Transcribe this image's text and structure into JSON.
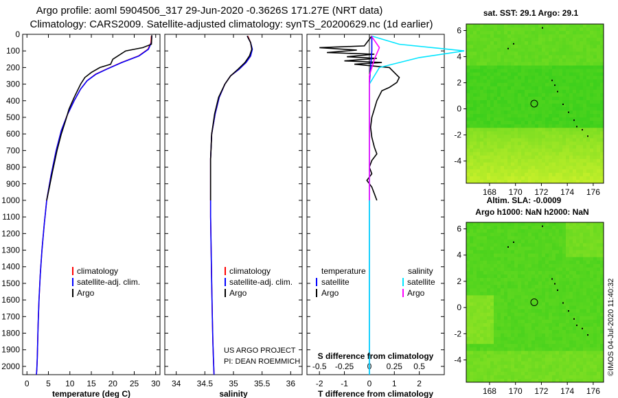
{
  "title_line1": "Argo profile: aoml 5904506_317 29-Jun-2020 -0.3626S 171.27E (NRT data)",
  "title_line2": "Climatology: CARS2009. Satellite-adjusted climatology: synTS_20200629.nc (1d earlier)",
  "depth_ticks": [
    0,
    100,
    200,
    300,
    400,
    500,
    600,
    700,
    800,
    900,
    1000,
    1100,
    1200,
    1300,
    1400,
    1500,
    1600,
    1700,
    1800,
    1900,
    2000
  ],
  "colors": {
    "climatology": "#ff0000",
    "satellite": "#0000ff",
    "argo": "#000000",
    "sal_sat": "#00e5ff",
    "sal_argo": "#ff00ff",
    "map_green": "#2ecc1a",
    "map_yellow": "#c8f02a"
  },
  "chart_data": [
    {
      "type": "line",
      "name_panel": "temperature",
      "xlabel": "temperature (deg C)",
      "ylabel": "",
      "xlim": [
        -1,
        31
      ],
      "ylim": [
        2050,
        0
      ],
      "x_ticks": [
        0,
        5,
        10,
        15,
        20,
        25,
        30
      ],
      "legend": [
        "climatology",
        "satellite-adj. clim.",
        "Argo"
      ],
      "series": [
        {
          "name": "climatology",
          "x": [
            29.0,
            28.9,
            28.2,
            26.0,
            22.0,
            18.5,
            16.0,
            14.0,
            12.5,
            11.0,
            9.5,
            8.0,
            6.8,
            5.6,
            4.6,
            4.0,
            3.5,
            3.1,
            2.8,
            2.6,
            2.5,
            2.4,
            2.3,
            2.2
          ],
          "y": [
            10,
            50,
            90,
            130,
            170,
            210,
            240,
            280,
            330,
            400,
            480,
            580,
            700,
            850,
            1000,
            1150,
            1300,
            1450,
            1600,
            1750,
            1850,
            1950,
            2020,
            2050
          ]
        },
        {
          "name": "satellite-adj. clim.",
          "x": [
            29.1,
            29.0,
            28.3,
            26.1,
            22.1,
            18.6,
            16.1,
            14.0,
            12.5,
            11.0,
            9.5,
            8.0,
            6.8,
            5.6,
            4.6,
            4.0,
            3.5,
            3.1,
            2.8,
            2.6,
            2.5,
            2.4,
            2.3,
            2.2
          ],
          "y": [
            10,
            50,
            90,
            130,
            170,
            210,
            240,
            280,
            330,
            400,
            480,
            580,
            700,
            850,
            1000,
            1150,
            1300,
            1450,
            1600,
            1750,
            1850,
            1950,
            2020,
            2050
          ]
        },
        {
          "name": "Argo",
          "x": [
            29.1,
            29.0,
            27.0,
            23.0,
            20.0,
            19.5,
            17.0,
            15.0,
            13.5,
            12.5,
            11.0,
            9.8,
            9.0,
            8.0,
            7.0,
            6.0,
            5.0,
            4.6
          ],
          "y": [
            5,
            60,
            80,
            100,
            150,
            180,
            200,
            230,
            260,
            300,
            380,
            450,
            520,
            600,
            700,
            820,
            950,
            1000
          ]
        }
      ]
    },
    {
      "type": "line",
      "name_panel": "salinity",
      "xlabel": "salinity",
      "ylabel": "",
      "xlim": [
        33.8,
        36.2
      ],
      "ylim": [
        2050,
        0
      ],
      "x_ticks": [
        34,
        34.5,
        35,
        35.5,
        36
      ],
      "legend": [
        "climatology",
        "satellite-adj. clim.",
        "Argo"
      ],
      "series": [
        {
          "name": "climatology",
          "x": [
            35.25,
            35.3,
            35.32,
            35.3,
            35.22,
            35.1,
            34.95,
            34.85,
            34.75,
            34.68,
            34.62,
            34.6,
            34.6,
            34.6,
            34.61,
            34.62,
            34.63,
            34.64,
            34.65,
            34.66
          ],
          "y": [
            10,
            50,
            90,
            130,
            170,
            210,
            250,
            300,
            380,
            480,
            600,
            750,
            900,
            1100,
            1300,
            1500,
            1700,
            1850,
            1950,
            2050
          ]
        },
        {
          "name": "satellite-adj. clim.",
          "x": [
            35.24,
            35.3,
            35.33,
            35.3,
            35.22,
            35.1,
            34.95,
            34.85,
            34.75,
            34.68,
            34.62,
            34.6,
            34.6,
            34.6,
            34.61,
            34.62,
            34.63,
            34.64,
            34.65,
            34.66
          ],
          "y": [
            10,
            50,
            90,
            130,
            170,
            210,
            250,
            300,
            380,
            480,
            600,
            750,
            900,
            1100,
            1300,
            1500,
            1700,
            1850,
            1950,
            2050
          ]
        },
        {
          "name": "Argo",
          "x": [
            35.24,
            35.3,
            35.32,
            35.28,
            35.2,
            35.08,
            34.95,
            34.85,
            34.74,
            34.67,
            34.62,
            34.6,
            34.6
          ],
          "y": [
            10,
            50,
            90,
            130,
            170,
            210,
            250,
            300,
            380,
            480,
            600,
            750,
            1000
          ]
        }
      ]
    },
    {
      "type": "line",
      "name_panel": "difference",
      "xlabel": "T difference from climatology",
      "top_label": "S difference from climatology",
      "xlim": [
        -2.5,
        3
      ],
      "ylim": [
        2050,
        0
      ],
      "x_ticks": [
        -2,
        -1,
        0,
        1,
        2
      ],
      "top_ticks": [
        "-0.5",
        "-0.25",
        "0",
        "0.25",
        "0.5"
      ],
      "legend_header": [
        "temperature",
        "salinity"
      ],
      "legend": [
        "satellite",
        "Argo",
        "satellite",
        "Argo"
      ],
      "series": [
        {
          "name": "temperature satellite",
          "x": [
            0.1,
            0.1,
            0.05,
            0,
            0,
            0,
            0,
            0,
            0,
            0,
            0,
            0
          ],
          "y": [
            10,
            100,
            200,
            300,
            400,
            600,
            800,
            1000,
            1300,
            1600,
            1900,
            2050
          ]
        },
        {
          "name": "temperature Argo",
          "x": [
            0.1,
            -0.2,
            -2.0,
            -0.5,
            -1.7,
            0.2,
            -0.9,
            0.3,
            -1.0,
            0.5,
            -0.6,
            0.8,
            1.2,
            1.1,
            0.8,
            0.5,
            0.3,
            0.2,
            0.1,
            0.05,
            0.1,
            0.2,
            0.3,
            0.1,
            0.0,
            0.1,
            -0.1,
            0.1,
            0.2,
            0.3
          ],
          "y": [
            10,
            70,
            80,
            95,
            110,
            120,
            135,
            145,
            160,
            170,
            180,
            200,
            260,
            290,
            320,
            340,
            400,
            450,
            500,
            560,
            620,
            680,
            720,
            760,
            800,
            840,
            880,
            920,
            960,
            1000
          ]
        },
        {
          "name": "salinity satellite",
          "x": [
            0.02,
            0.3,
            0.95,
            0.5,
            0.1,
            0,
            0,
            0,
            0,
            0
          ],
          "y": [
            10,
            60,
            100,
            140,
            200,
            300,
            600,
            1000,
            1500,
            2050
          ]
        },
        {
          "name": "salinity Argo",
          "x": [
            0.02,
            0.1,
            0.05,
            0,
            0
          ],
          "y": [
            10,
            80,
            150,
            250,
            1000
          ]
        }
      ]
    }
  ],
  "credit_line1": "US ARGO PROJECT",
  "credit_line2": "PI: DEAN ROEMMICH",
  "map1_title": "sat. SST: 29.1  Argo: 29.1",
  "map2_title_a": "Altim. SLA: -0.0009",
  "map2_title_b": "Argo h1000: NaN  h2000: NaN",
  "map_x_ticks": [
    "168",
    "170",
    "172",
    "174",
    "176"
  ],
  "map_y_ticks": [
    "6",
    "4",
    "2",
    "0",
    "-2",
    "-4"
  ],
  "imos_stamp": "©IMOS 04-Jul-2020 11:40:32"
}
